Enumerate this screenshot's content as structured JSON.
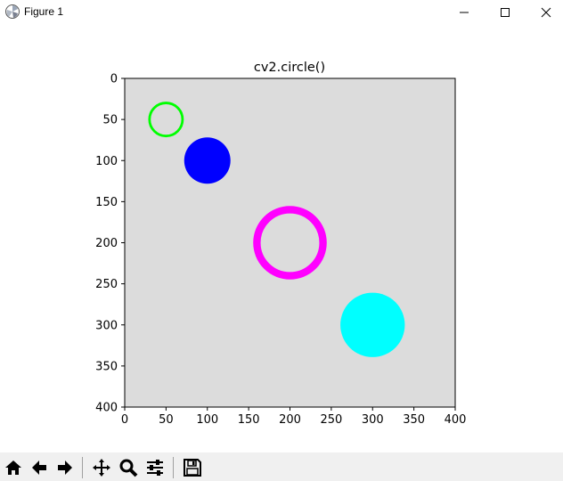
{
  "window": {
    "title": "Figure 1"
  },
  "figure": {
    "title": "cv2.circle()"
  },
  "toolbar": {
    "buttons": [
      "home-icon",
      "back-arrow-icon",
      "forward-arrow-icon",
      "pan-move-icon",
      "zoom-magnifier-icon",
      "configure-subplots-icon",
      "save-disk-icon"
    ]
  },
  "chart_data": {
    "type": "image",
    "title": "cv2.circle()",
    "background_color": "#dcdcdc",
    "xlim": [
      0,
      400
    ],
    "ylim": [
      400,
      0
    ],
    "x_ticks": [
      0,
      50,
      100,
      150,
      200,
      250,
      300,
      350,
      400
    ],
    "y_ticks": [
      0,
      50,
      100,
      150,
      200,
      250,
      300,
      350,
      400
    ],
    "circles": [
      {
        "center": [
          50,
          50
        ],
        "radius": 20,
        "color": "#00ff00",
        "filled": false,
        "thickness": 3
      },
      {
        "center": [
          100,
          100
        ],
        "radius": 28,
        "color": "#0000ff",
        "filled": true,
        "thickness": -1
      },
      {
        "center": [
          200,
          200
        ],
        "radius": 40,
        "color": "#ff00ff",
        "filled": false,
        "thickness": 9
      },
      {
        "center": [
          300,
          300
        ],
        "radius": 39,
        "color": "#00ffff",
        "filled": true,
        "thickness": -1
      }
    ],
    "grid": false
  }
}
